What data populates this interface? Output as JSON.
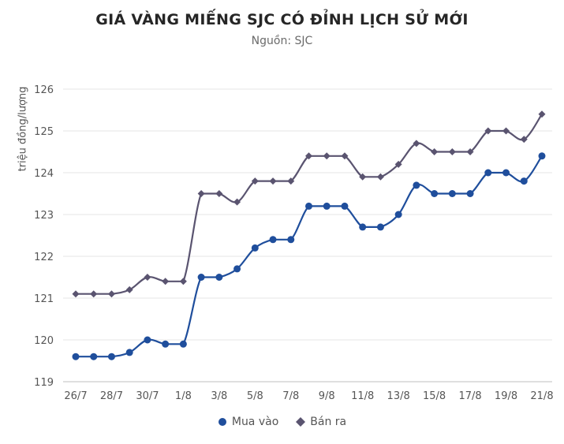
{
  "chart_data": {
    "type": "line",
    "title": "GIÁ VÀNG MIẾNG SJC CÓ ĐỈNH LỊCH SỬ MỚI",
    "subtitle": "Nguồn: SJC",
    "ylabel": "triệu đồng/lượng",
    "ylim": [
      119,
      126
    ],
    "yticks": [
      119,
      120,
      121,
      122,
      123,
      124,
      125,
      126
    ],
    "x": [
      "26/7",
      "27/7",
      "28/7",
      "29/7",
      "30/7",
      "31/7",
      "1/8",
      "2/8",
      "3/8",
      "4/8",
      "5/8",
      "6/8",
      "7/8",
      "8/8",
      "9/8",
      "10/8",
      "11/8",
      "12/8",
      "13/8",
      "14/8",
      "15/8",
      "16/8",
      "17/8",
      "18/8",
      "19/8",
      "20/8",
      "21/8"
    ],
    "xtick_labels": [
      "26/7",
      "28/7",
      "30/7",
      "1/8",
      "3/8",
      "5/8",
      "7/8",
      "9/8",
      "11/8",
      "13/8",
      "15/8",
      "17/8",
      "19/8",
      "21/8"
    ],
    "grid": true,
    "legend_position": "bottom",
    "series": [
      {
        "name": "Mua vào",
        "color": "#1f4e9c",
        "marker": "circle",
        "values": [
          119.6,
          119.6,
          119.6,
          119.7,
          120.0,
          119.9,
          119.9,
          121.5,
          121.5,
          121.7,
          122.2,
          122.4,
          122.4,
          123.2,
          123.2,
          123.2,
          122.7,
          122.7,
          123.0,
          123.7,
          123.5,
          123.5,
          123.5,
          124.0,
          124.0,
          123.8,
          124.4
        ]
      },
      {
        "name": "Bán ra",
        "color": "#5a5470",
        "marker": "diamond",
        "values": [
          121.1,
          121.1,
          121.1,
          121.2,
          121.5,
          121.4,
          121.4,
          123.5,
          123.5,
          123.3,
          123.8,
          123.8,
          123.8,
          124.4,
          124.4,
          124.4,
          123.9,
          123.9,
          124.2,
          124.7,
          124.5,
          124.5,
          124.5,
          125.0,
          125.0,
          124.8,
          125.4
        ]
      }
    ]
  }
}
